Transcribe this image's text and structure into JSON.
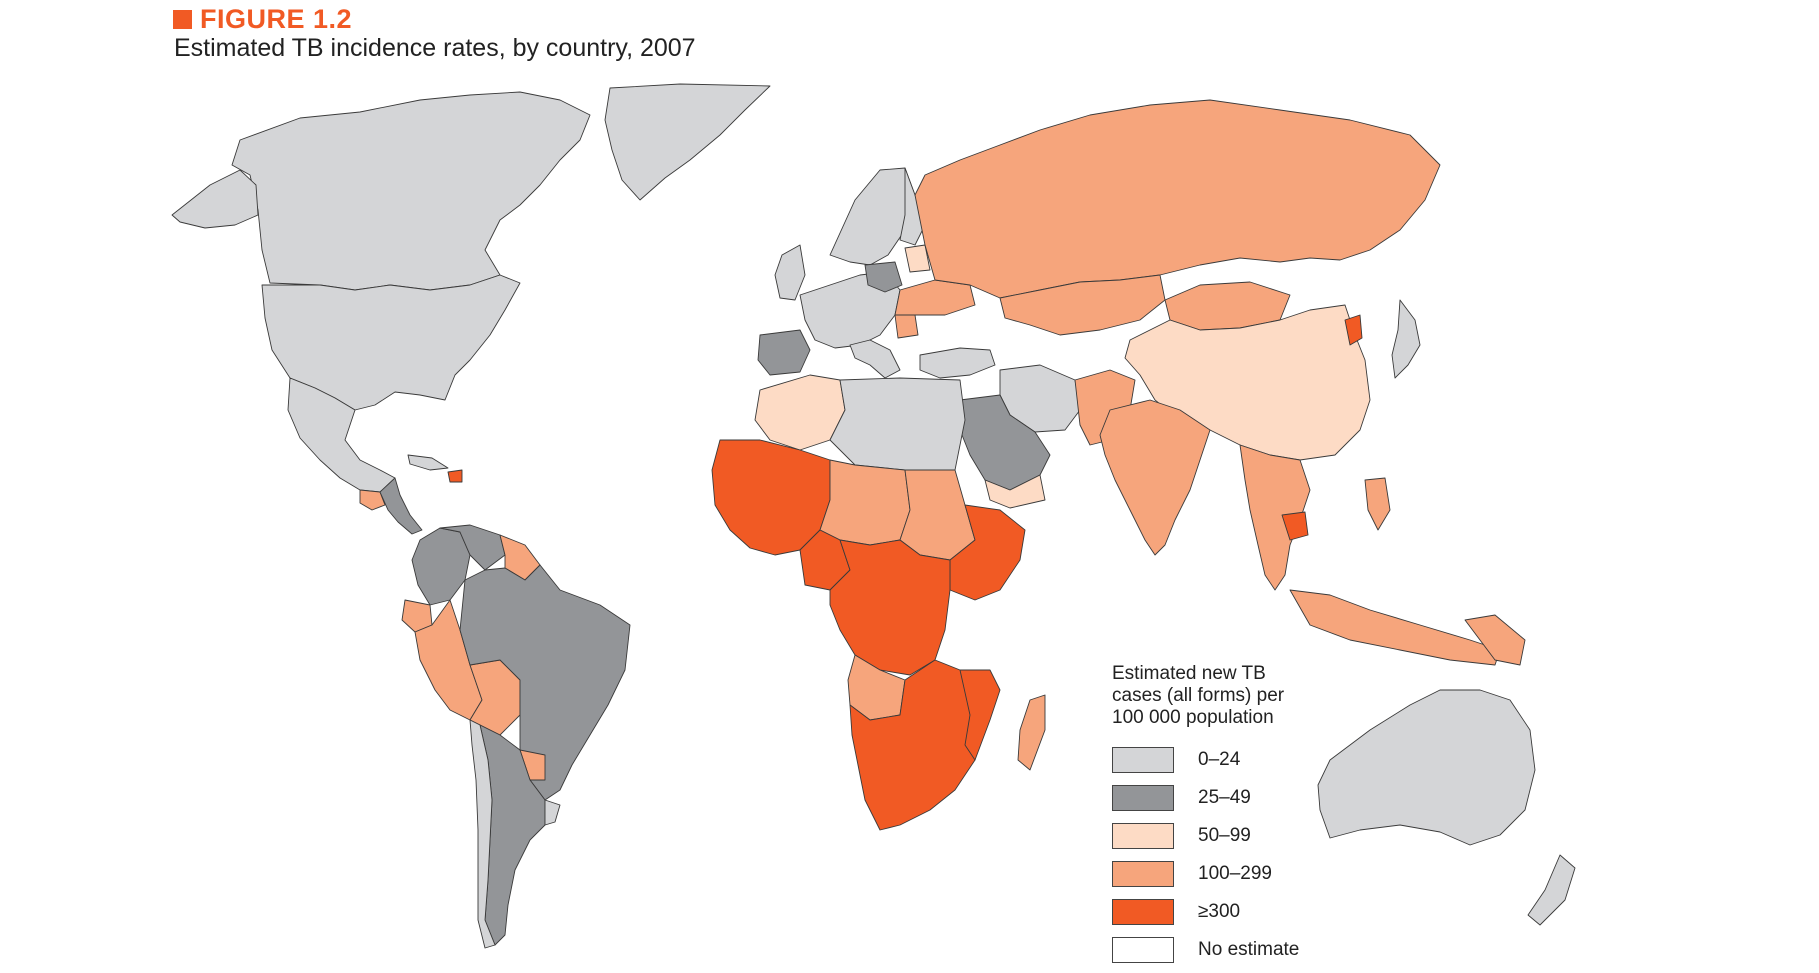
{
  "figure": {
    "label": "FIGURE 1.2",
    "title": "Estimated TB incidence rates, by country, 2007"
  },
  "legend": {
    "title_lines": [
      "Estimated new TB",
      "cases (all forms) per",
      "100 000 population"
    ],
    "classes": [
      {
        "label": "0–24",
        "color": "#d4d5d7"
      },
      {
        "label": "25–49",
        "color": "#939598"
      },
      {
        "label": "50–99",
        "color": "#fddbc5"
      },
      {
        "label": "100–299",
        "color": "#f6a57c"
      },
      {
        "label": "≥300",
        "color": "#f15a24"
      },
      {
        "label": "No estimate",
        "color": "#ffffff"
      }
    ]
  },
  "map": {
    "type": "choropleth",
    "region": "world",
    "category_colors": [
      "#d4d5d7",
      "#939598",
      "#fddbc5",
      "#f6a57c",
      "#f15a24",
      "#ffffff"
    ]
  }
}
